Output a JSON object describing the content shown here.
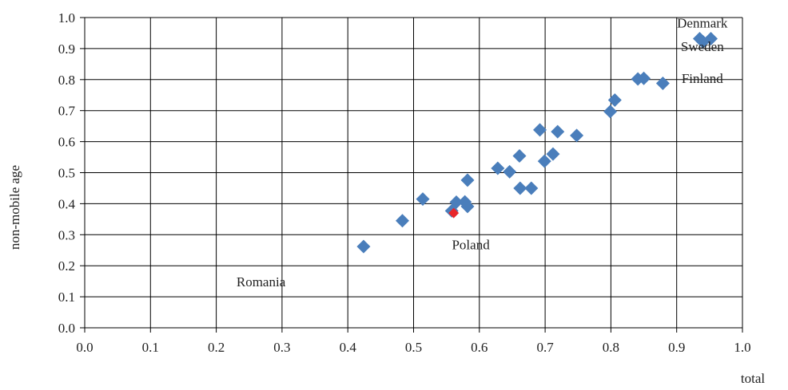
{
  "chart_data": {
    "type": "scatter",
    "title": "",
    "xlabel": "total",
    "ylabel": "non-mobile age",
    "xlim": [
      0,
      1
    ],
    "ylim": [
      0,
      1
    ],
    "x_ticks": [
      "0.0",
      "0.1",
      "0.2",
      "0.3",
      "0.4",
      "0.5",
      "0.6",
      "0.7",
      "0.8",
      "0.9",
      "1.0"
    ],
    "y_ticks": [
      "0.0",
      "0.1",
      "0.2",
      "0.3",
      "0.4",
      "0.5",
      "0.6",
      "0.7",
      "0.8",
      "0.9",
      "1.0"
    ],
    "grid": true,
    "legend": false,
    "colors": {
      "points": "#4a7ebb",
      "highlight": "#e8262a",
      "grid": "#000000"
    },
    "series": [
      {
        "points": [
          {
            "x": 0.424,
            "y": 0.262
          },
          {
            "x": 0.483,
            "y": 0.345
          },
          {
            "x": 0.514,
            "y": 0.415
          },
          {
            "x": 0.558,
            "y": 0.377
          },
          {
            "x": 0.565,
            "y": 0.405
          },
          {
            "x": 0.578,
            "y": 0.406
          },
          {
            "x": 0.582,
            "y": 0.391
          },
          {
            "x": 0.582,
            "y": 0.476
          },
          {
            "x": 0.628,
            "y": 0.514
          },
          {
            "x": 0.646,
            "y": 0.503
          },
          {
            "x": 0.661,
            "y": 0.554
          },
          {
            "x": 0.662,
            "y": 0.45
          },
          {
            "x": 0.679,
            "y": 0.45
          },
          {
            "x": 0.692,
            "y": 0.638
          },
          {
            "x": 0.699,
            "y": 0.537
          },
          {
            "x": 0.712,
            "y": 0.56
          },
          {
            "x": 0.719,
            "y": 0.632
          },
          {
            "x": 0.748,
            "y": 0.62
          },
          {
            "x": 0.799,
            "y": 0.697
          },
          {
            "x": 0.806,
            "y": 0.734
          },
          {
            "x": 0.841,
            "y": 0.802
          },
          {
            "x": 0.85,
            "y": 0.804
          },
          {
            "x": 0.879,
            "y": 0.788
          },
          {
            "x": 0.935,
            "y": 0.932
          },
          {
            "x": 0.94,
            "y": 0.922
          },
          {
            "x": 0.952,
            "y": 0.932
          }
        ]
      },
      {
        "highlight": true,
        "points": [
          {
            "x": 0.561,
            "y": 0.37
          }
        ]
      }
    ],
    "annotations": [
      {
        "text": "Denmark",
        "x": 0.939,
        "y": 0.983
      },
      {
        "text": "Sweden",
        "x": 0.939,
        "y": 0.907
      },
      {
        "text": "Finland",
        "x": 0.939,
        "y": 0.805
      },
      {
        "text": "Poland",
        "x": 0.587,
        "y": 0.268
      },
      {
        "text": "Romania",
        "x": 0.268,
        "y": 0.149
      }
    ]
  }
}
